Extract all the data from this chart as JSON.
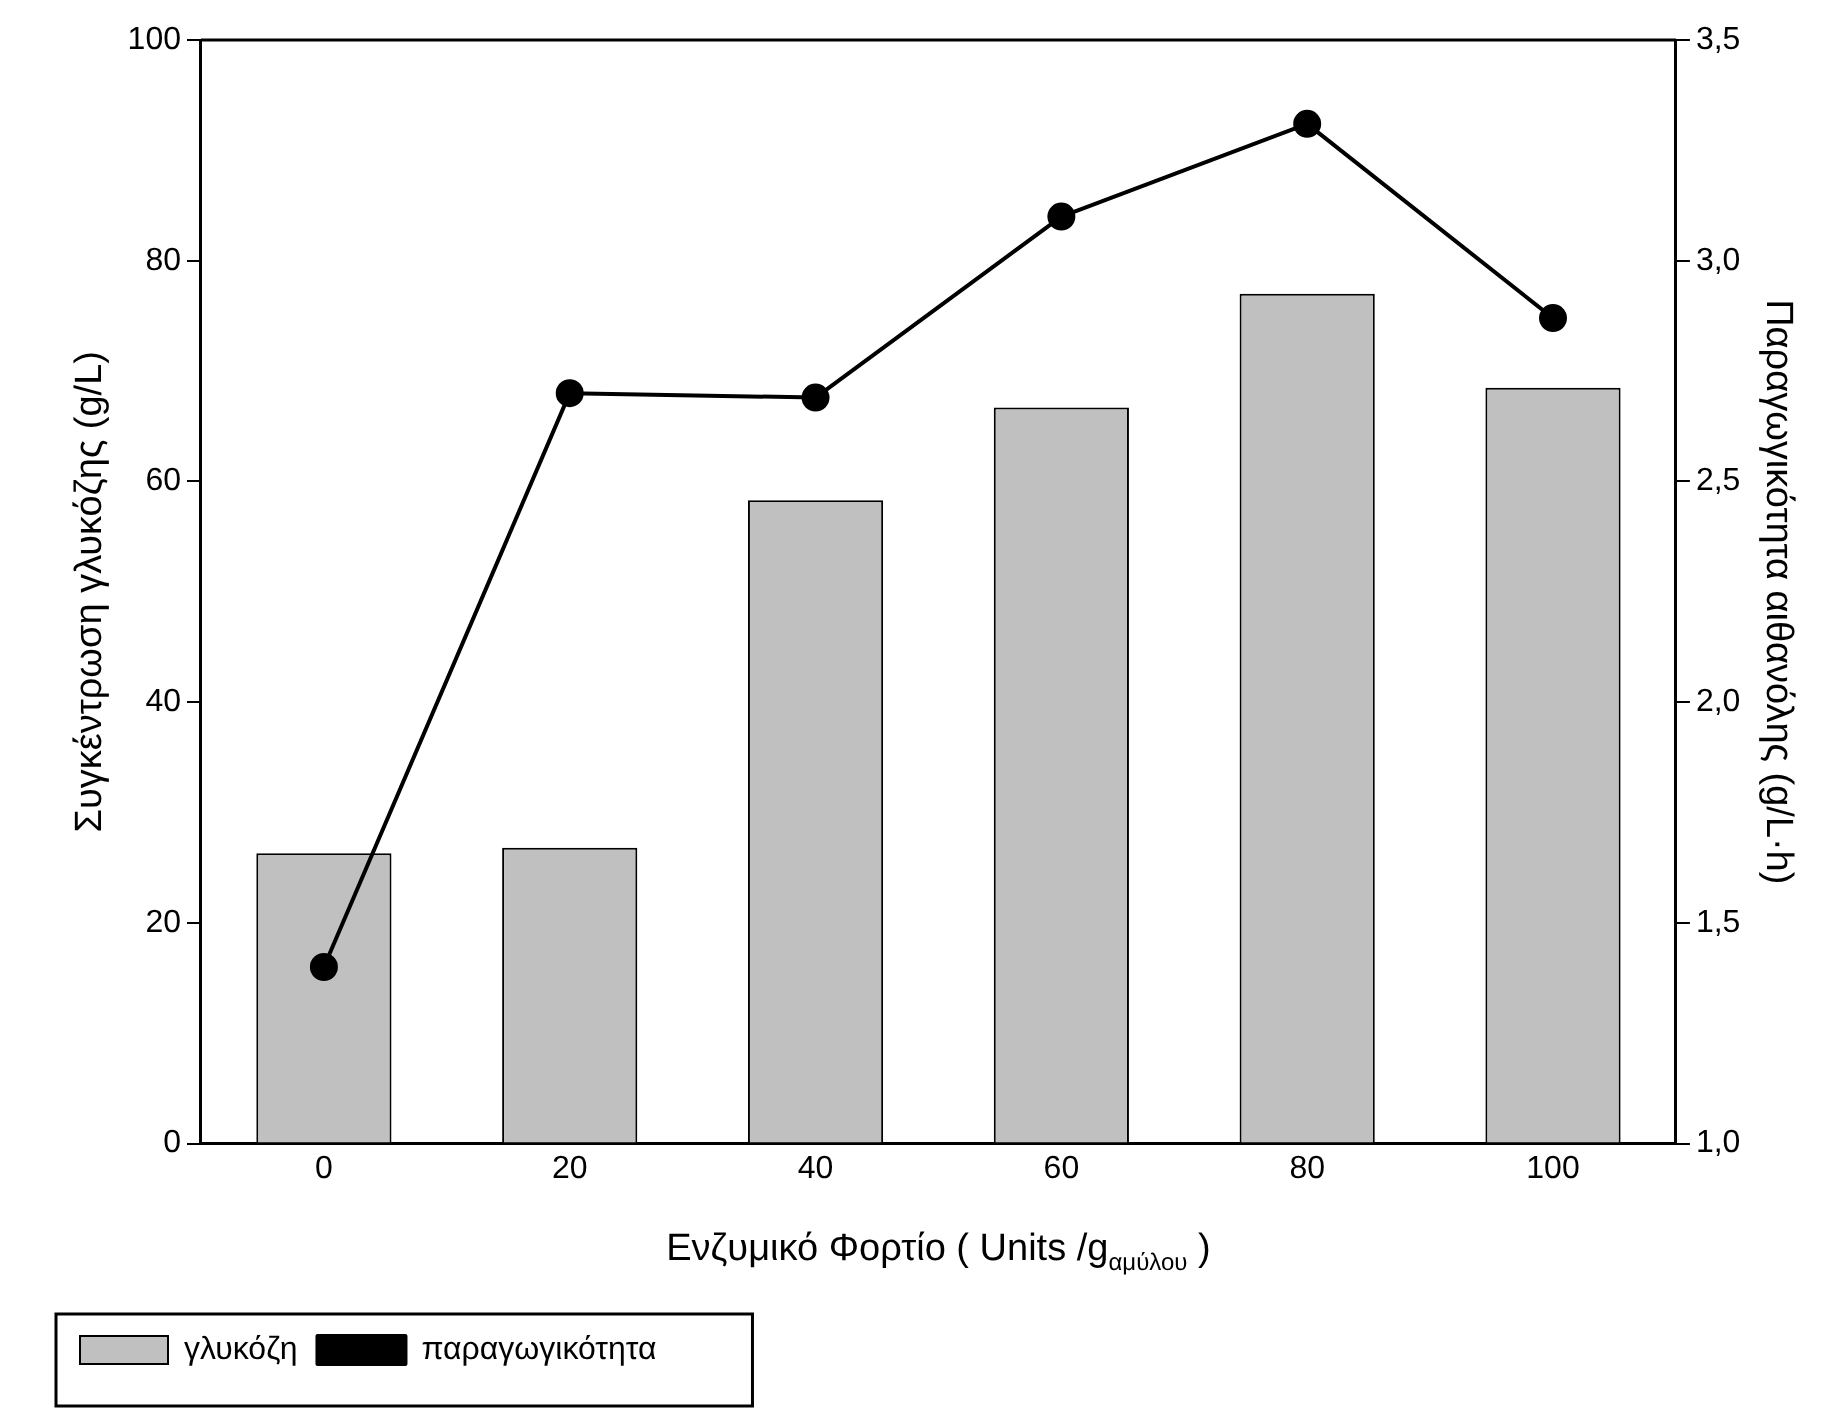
{
  "chart_data": {
    "type": "bar",
    "xlabel": "Ενζυμικό Φορτίο ( Units /g$_{αμύλου}$ )",
    "ylabel": "Συγκέντρωση γλυκόζης (g/L)",
    "y2label": "Παραγωγικότητα αιθανόλης (g/L·h)",
    "categories": [
      "0",
      "20",
      "40",
      "60",
      "80",
      "100"
    ],
    "series": [
      {
        "name": "γλυκόζη",
        "color": "#c0c0c0",
        "values": [
          26.3,
          26.8,
          58.3,
          66.7,
          77.0,
          68.5
        ]
      },
      {
        "name": "παραγωγικότητα",
        "type": "line",
        "axis": "y2",
        "color": "#000000",
        "marker": "circle",
        "line_style": "solid",
        "values": [
          1.4,
          2.7,
          2.69,
          3.1,
          3.31,
          2.87
        ]
      }
    ],
    "ylim": [
      0,
      100
    ],
    "yticks": [
      0,
      20,
      40,
      60,
      80,
      100
    ],
    "y2lim": [
      1.0,
      3.5
    ],
    "y2ticks": [
      {
        "value": 1.0,
        "label": "1,0"
      },
      {
        "value": 1.5,
        "label": "1,5"
      },
      {
        "value": 2.0,
        "label": "2,0"
      },
      {
        "value": 2.5,
        "label": "2,5"
      },
      {
        "value": 3.0,
        "label": "3,0"
      },
      {
        "value": 3.5,
        "label": "3,5"
      }
    ],
    "grid": false,
    "legend": "bottom left"
  }
}
